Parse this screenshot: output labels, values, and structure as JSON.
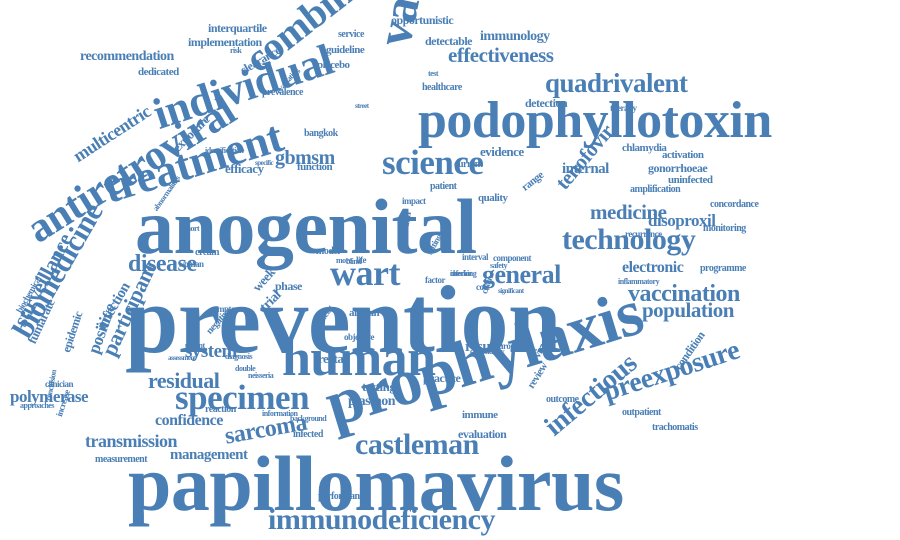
{
  "color": "#4a7fb5",
  "words": [
    "prevention",
    "papillomavirus",
    "anogenital",
    "prophylaxis",
    "podophyllotoxin",
    "human",
    "treatment",
    "individual",
    "antiretroviral",
    "vaccine",
    "combination",
    "immunodeficiency",
    "science",
    "technology",
    "wart",
    "specimen",
    "castleman",
    "biomedicine",
    "infectious",
    "preexposure",
    "surveillance",
    "participant",
    "disease",
    "vaccination",
    "general",
    "quadrivalent",
    "effectiveness",
    "residual",
    "sarcoma",
    "tenofovir",
    "transmission",
    "medicine",
    "system",
    "population",
    "electronic",
    "multicentric",
    "infection",
    "positive",
    "polymerase",
    "management",
    "confidence",
    "result",
    "testing",
    "practice",
    "internal",
    "gbmsm",
    "recommendation",
    "fumarate",
    "epidemic",
    "disoproxil",
    "detection",
    "evaluation",
    "interquartile",
    "opportunistic",
    "detectable",
    "immunology",
    "implementation",
    "clearance",
    "dedicated",
    "exposure",
    "efficacy",
    "function",
    "evidence",
    "quality",
    "chlamydia",
    "activation",
    "gonorrhoeae",
    "uninfected",
    "monitoring",
    "concordance",
    "programme",
    "condition",
    "review",
    "outcome",
    "outpatient",
    "trachomatis",
    "immune",
    "performance",
    "measurement",
    "reaction",
    "infected",
    "plasmon",
    "phase",
    "week",
    "trial",
    "cream",
    "woman",
    "negative",
    "cancer",
    "african",
    "rectal",
    "virus",
    "placebo",
    "guideline",
    "service",
    "prevalence",
    "healthcare",
    "bangkok",
    "patient",
    "impact",
    "current",
    "interval",
    "health",
    "cost",
    "factor",
    "range",
    "therapy",
    "amplification",
    "recurrence",
    "objective",
    "europe",
    "diagnosis",
    "double",
    "clinician",
    "approaches",
    "biochemical",
    "abnormalities",
    "cohort",
    "symptom",
    "urgent",
    "background",
    "component",
    "safety",
    "model",
    "setting",
    "chain",
    "life",
    "blind",
    "more",
    "risk",
    "test",
    "identification",
    "inflammatory",
    "significant",
    "information",
    "community",
    "assessment",
    "specific",
    "increase",
    "conclusion",
    "neisseria",
    "evaluating",
    "street",
    "checking",
    "inferior"
  ]
}
